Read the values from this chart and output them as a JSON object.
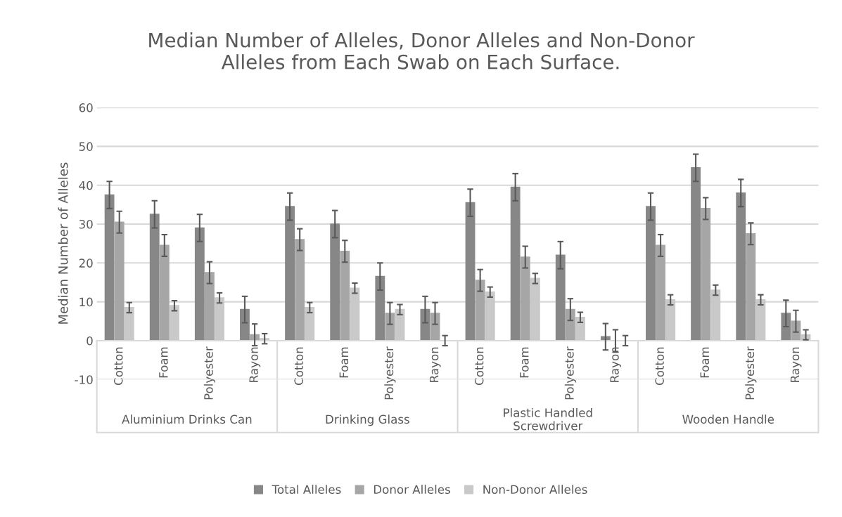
{
  "chart_data": {
    "type": "bar",
    "title": "Median Number of Alleles, Donor Alleles and Non-Donor\nAlleles from Each Swab on Each Surface.",
    "ylabel": "Median Number of Alleles",
    "categories": [
      "Cotton",
      "Foam",
      "Polyester",
      "Rayon",
      "Cotton",
      "Foam",
      "Polyester",
      "Rayon",
      "Cotton",
      "Foam",
      "Polyester",
      "Rayon",
      "Cotton",
      "Foam",
      "Polyester",
      "Rayon"
    ],
    "annotations": [
      "Aluminium Drinks Can",
      "Drinking Glass",
      "Plastic Handled\nScrewdriver",
      "Wooden Handle"
    ],
    "series": [
      {
        "name": "Total Alleles",
        "color": "#878787",
        "values": [
          37.5,
          32.5,
          29,
          8,
          34.5,
          30,
          16.5,
          8,
          35.5,
          39.5,
          22,
          1,
          34.5,
          44.5,
          38,
          7
        ],
        "errors": [
          3.5,
          3.5,
          3.5,
          3.4,
          3.5,
          3.5,
          3.5,
          3.4,
          3.5,
          3.5,
          3.5,
          3.4,
          3.5,
          3.5,
          3.5,
          3.4
        ]
      },
      {
        "name": "Donor Alleles",
        "color": "#a6a6a6",
        "values": [
          30.5,
          24.5,
          17.5,
          1.5,
          26,
          23,
          7,
          7,
          15.5,
          21.5,
          8,
          0,
          24.5,
          34,
          27.5,
          5
        ],
        "errors": [
          2.8,
          2.8,
          2.8,
          2.8,
          2.8,
          2.8,
          2.8,
          2.8,
          2.8,
          2.8,
          2.8,
          2.8,
          2.8,
          2.8,
          2.8,
          2.8
        ]
      },
      {
        "name": "Non-Donor Alleles",
        "color": "#c9c9c9",
        "values": [
          8.5,
          9,
          11,
          0.5,
          8.5,
          13.5,
          8,
          0,
          12.5,
          16,
          6,
          0,
          10.5,
          13,
          10.5,
          1.5
        ],
        "errors": [
          1.3,
          1.3,
          1.3,
          1.3,
          1.3,
          1.3,
          1.3,
          1.3,
          1.3,
          1.3,
          1.3,
          1.3,
          1.3,
          1.3,
          1.3,
          1.3
        ]
      }
    ],
    "ylim": [
      -10,
      60
    ],
    "yticks": [
      -10,
      0,
      10,
      20,
      30,
      40,
      50,
      60
    ],
    "grid": "y",
    "legend": "bottom"
  }
}
